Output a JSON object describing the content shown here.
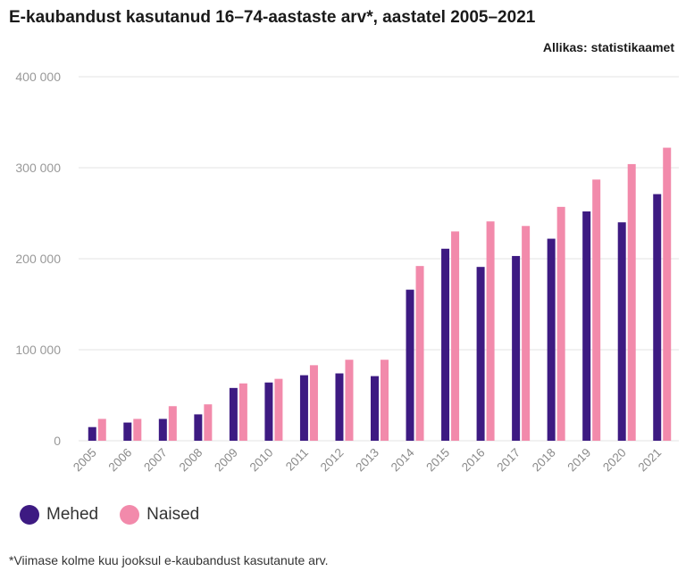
{
  "title": "E-kaubandust kasutanud 16–74-aastaste arv*, aastatel 2005–2021",
  "source": "Allikas: statistikaamet",
  "footnote": "*Viimase kolme kuu jooksul e-kaubandust kasutanute arv.",
  "colors": {
    "mehed": "#3d1a82",
    "naised": "#f28aab",
    "grid": "#e3e3e3"
  },
  "chart_data": {
    "type": "bar",
    "title": "E-kaubandust kasutanud 16–74-aastaste arv*, aastatel 2005–2021",
    "xlabel": "",
    "ylabel": "",
    "ylim": [
      0,
      400000
    ],
    "y_ticks": [
      0,
      100000,
      200000,
      300000,
      400000
    ],
    "y_tick_labels": [
      "0",
      "100 000",
      "200 000",
      "300 000",
      "400 000"
    ],
    "grid": true,
    "legend_position": "bottom-left",
    "categories": [
      "2005",
      "2006",
      "2007",
      "2008",
      "2009",
      "2010",
      "2011",
      "2012",
      "2013",
      "2014",
      "2015",
      "2016",
      "2017",
      "2018",
      "2019",
      "2020",
      "2021"
    ],
    "series": [
      {
        "name": "Mehed",
        "values": [
          15000,
          20000,
          24000,
          29000,
          58000,
          64000,
          72000,
          74000,
          71000,
          166000,
          211000,
          191000,
          203000,
          222000,
          252000,
          240000,
          271000
        ]
      },
      {
        "name": "Naised",
        "values": [
          24000,
          24000,
          38000,
          40000,
          63000,
          68000,
          83000,
          89000,
          89000,
          192000,
          230000,
          241000,
          236000,
          257000,
          287000,
          304000,
          322000
        ]
      }
    ]
  }
}
